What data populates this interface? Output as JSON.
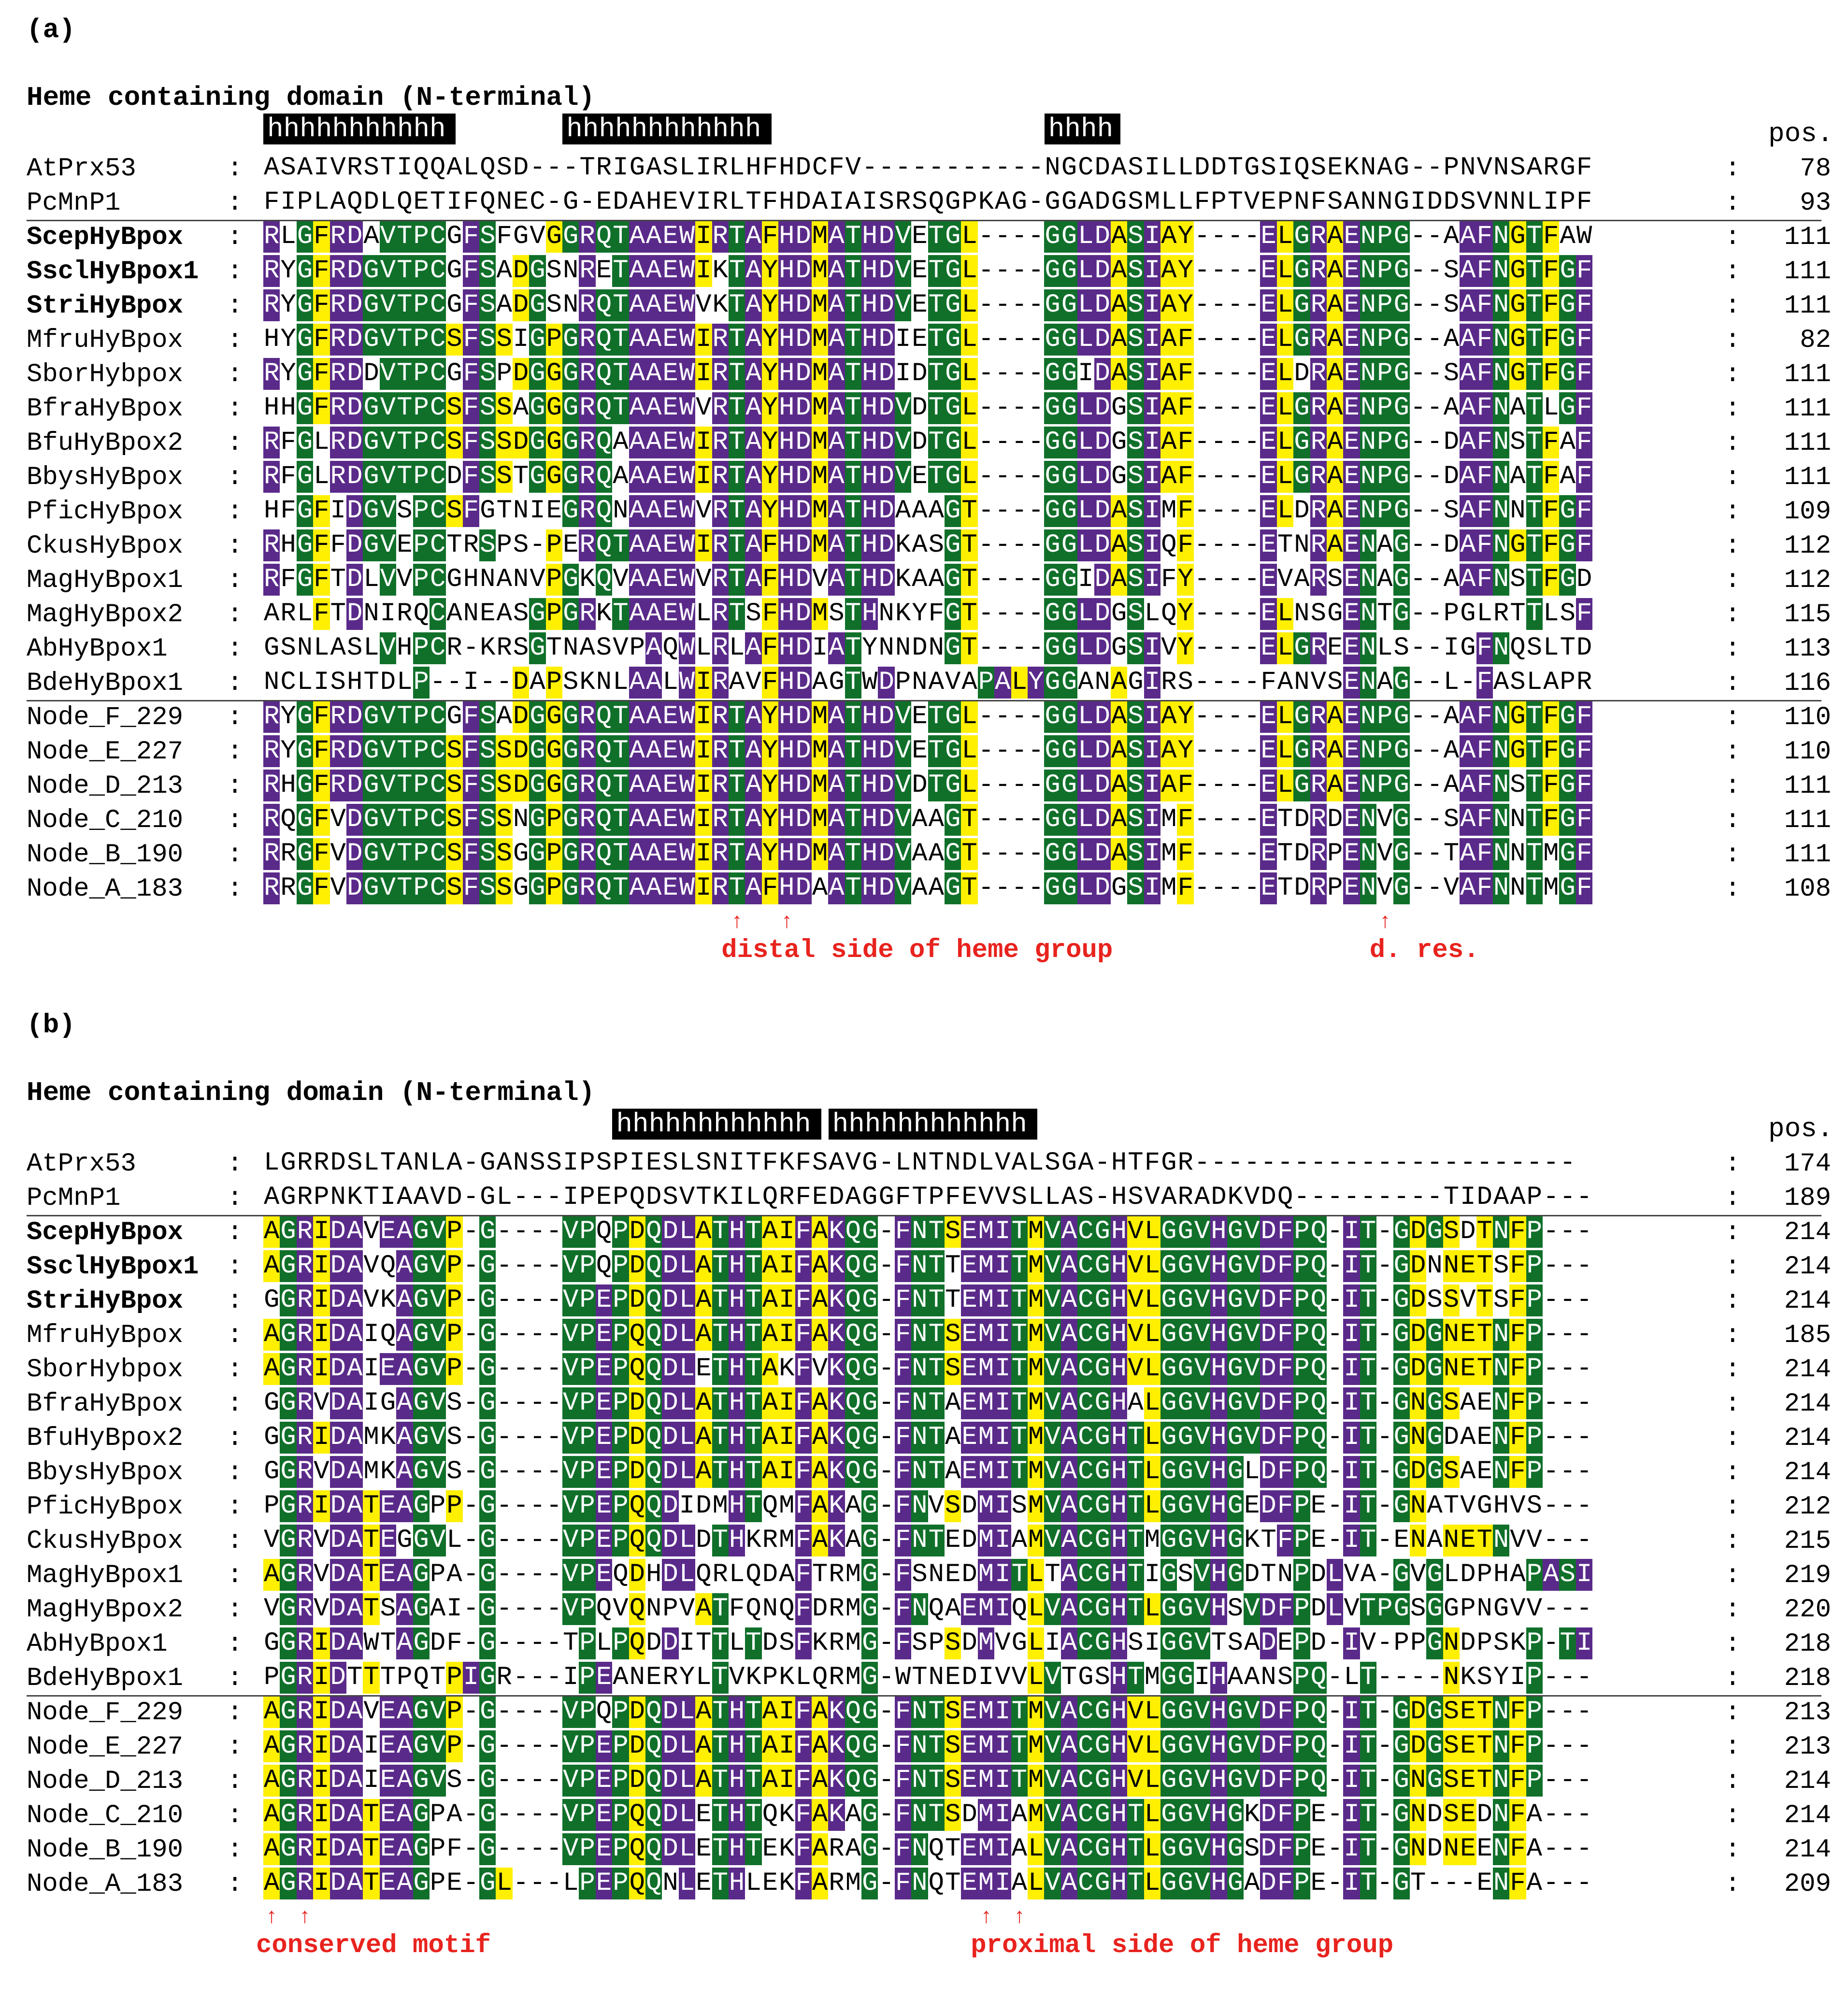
{
  "panels": [
    {
      "label": "(a)",
      "title": "Heme containing domain (N-terminal)",
      "pos_header": "pos.",
      "helices": [
        {
          "text": "hhhhhhhhhhh",
          "col": 0,
          "len": 11
        },
        {
          "text": "hhhhhhhhhhhh",
          "col": 18,
          "len": 12
        },
        {
          "text": "hhhh",
          "col": 47,
          "len": 4
        }
      ],
      "rows": [
        {
          "name": "AtPrx53",
          "bold": false,
          "seq": "ASAIVRSTIQQALQSD---TRIGASLIRLHFHDCFV-----------NGCDASILLDDTGSIQSEKNAG--PNVNSARGF",
          "pos": "78",
          "sep_after": false
        },
        {
          "name": "PcMnP1",
          "bold": false,
          "seq": "FIPLAQDLQETIFQNEC-G-EDAHEVIRLTFHDAIAISRSQGPKAG-GGADGSMLLFPTVEPNFSANNGIDDSVNNLIPF",
          "pos": "93",
          "sep_after": true
        },
        {
          "name": "ScepHyBpox",
          "bold": true,
          "seq": "RLGFRDAVTPCGFSFGVGGRQTAAEWIRTAFHDMATHDVETGL----GGLDASIAY----ELGRAENPG--AAFNGTFAW",
          "pos": "111",
          "sep_after": false
        },
        {
          "name": "SsclHyBpox1",
          "bold": true,
          "seq": "RYGFRDGVTPCGFSADGSNRETAAEWIKTAYHDMATHDVETGL----GGLDASIAY----ELGRAENPG--SAFNGTFGF",
          "pos": "111",
          "sep_after": false
        },
        {
          "name": "StriHyBpox",
          "bold": true,
          "seq": "RYGFRDGVTPCGFSADGSNRQTAAEWVKTAYHDMATHDVETGL----GGLDASIAY----ELGRAENPG--SAFNGTFGF",
          "pos": "111",
          "sep_after": false
        },
        {
          "name": "MfruHyBpox",
          "bold": false,
          "seq": "HYGFRDGVTPCSFSSIGPGRQTAAEWIRTAYHDMATHDIETGL----GGLDASIAF----ELGRAENPG--AAFNGTFGF",
          "pos": "82",
          "sep_after": false
        },
        {
          "name": "SborHybpox",
          "bold": false,
          "seq": "RYGFRDDVTPCGFSPDGGGRQTAAEWIRTAYHDMATHDIDTGL----GGIDASIAF----ELDRAENPG--SAFNGTFGF",
          "pos": "111",
          "sep_after": false
        },
        {
          "name": "BfraHyBpox",
          "bold": false,
          "seq": "HHGFRDGVTPCSFSSAGGGRQTAAEWVRTAYHDMATHDVDTGL----GGLDGSIAF----ELGRAENPG--AAFNATLGF",
          "pos": "111",
          "sep_after": false
        },
        {
          "name": "BfuHyBpox2",
          "bold": false,
          "seq": "RFGLRDGVTPCSFSSDGGGRQAAAEWIRTAYHDMATHDVDTGL----GGLDGSIAF----ELGRAENPG--DAFNSTFAF",
          "pos": "111",
          "sep_after": false
        },
        {
          "name": "BbysHyBpox",
          "bold": false,
          "seq": "RFGLRDGVTPCDFSSTGGGRQAAAEWIRTAYHDMATHDVETGL----GGLDGSIAF----ELGRAENPG--DAFNATFAF",
          "pos": "111",
          "sep_after": false
        },
        {
          "name": "PficHyBpox",
          "bold": false,
          "seq": "HFGFIDGVSPCSFGTNIEGRQNAAEWVRTAYHDMATHDAAAGT----GGLDASIMF----ELDRAENPG--SAFNNTFGF",
          "pos": "109",
          "sep_after": false
        },
        {
          "name": "CkusHyBpox",
          "bold": false,
          "seq": "RHGFFDGVEPCTRSPS-PERQTAAEWIRTAFHDMATHDKASGT----GGLDASIQF----ETNRAENAG--DAFNGTFGF",
          "pos": "112",
          "sep_after": false
        },
        {
          "name": "MagHyBpox1",
          "bold": false,
          "seq": "RFGFTDLVVPCGHNANVPGKQVAAEWVRTAFHDVATHDKAAGT----GGIDASIFY----EVARSENAG--AAFNSTFGD",
          "pos": "112",
          "sep_after": false
        },
        {
          "name": "MagHyBpox2",
          "bold": false,
          "seq": "ARLFTDNIRQCANEASGPGRKTAAEWLRTSFHDMSTHNKYFGT----GGLDGSLQY----ELNSGENTG--PGLRTTLSF",
          "pos": "115",
          "sep_after": false
        },
        {
          "name": "AbHyBpox1",
          "bold": false,
          "seq": "GSNLASLVHPCR-KRSGTNASVPAQWLRLAFHDIATYNNDNGT----GGLDGSIVY----ELGREENLS--IGFNQSLTD",
          "pos": "113",
          "sep_after": false
        },
        {
          "name": "BdeHyBpox1",
          "bold": false,
          "seq": "NCLISHTDLP--I--DAPSKNLAALWIRAVFHDAGTWDPNAVAPALYGGANAGIRS----FANVSENAG--L-FASLAPR",
          "pos": "116",
          "sep_after": true
        },
        {
          "name": "Node_F_229",
          "bold": false,
          "seq": "RYGFRDGVTPCGFSADGGGRQTAAEWIRTAYHDMATHDVETGL----GGLDASIAY----ELGRAENPG--AAFNGTFGF",
          "pos": "110",
          "sep_after": false
        },
        {
          "name": "Node_E_227",
          "bold": false,
          "seq": "RYGFRDGVTPCSFSSDGGGRQTAAEWIRTAYHDMATHDVETGL----GGLDASIAY----ELGRAENPG--AAFNGTFGF",
          "pos": "110",
          "sep_after": false
        },
        {
          "name": "Node_D_213",
          "bold": false,
          "seq": "RHGFRDGVTPCSFSSDGGGRQTAAEWIRTAYHDMATHDVDTGL----GGLDASIAF----ELGRAENPG--AAFNSTFGF",
          "pos": "111",
          "sep_after": false
        },
        {
          "name": "Node_C_210",
          "bold": false,
          "seq": "RQGFVDGVTPCSFSSNGPGRQTAAEWIRTAYHDMATHDVAAGT----GGLDASIMF----ETDRDENVG--SAFNNTFGF",
          "pos": "111",
          "sep_after": false
        },
        {
          "name": "Node_B_190",
          "bold": false,
          "seq": "RRGFVDGVTPCSFSSGGPGRQTAAEWIRTAYHDMATHDVAAGT----GGLDASIMF----ETDRPENVG--TAFNNTMGF",
          "pos": "111",
          "sep_after": false
        },
        {
          "name": "Node_A_183",
          "bold": false,
          "seq": "RRGFVDGVTPCSFSSGGPGRQTAAEWIRTAFHDAATHDVAAGT----GGLDGSIMF----ETDRPENVG--VAFNNTMGF",
          "pos": "108",
          "sep_after": false
        }
      ],
      "annotations": [
        {
          "text": "distal side of heme group",
          "arrow_cols": [
            28,
            31
          ]
        },
        {
          "text": "d. res.",
          "arrow_cols": [
            67
          ]
        }
      ]
    },
    {
      "label": "(b)",
      "title": "Heme containing domain (N-terminal)",
      "pos_header": "pos.",
      "helices": [
        {
          "text": "hhhhhhhhhhhh",
          "col": 21,
          "len": 12
        },
        {
          "text": "hhhhhhhhhhhh",
          "col": 34,
          "len": 12
        }
      ],
      "rows": [
        {
          "name": "AtPrx53",
          "bold": false,
          "seq": "LGRRDSLTANLA-GANSSIPSPIESLSNITFKFSAVG-LNTNDLVALSGA-HTFGR-----------------------",
          "pos": "174",
          "sep_after": false
        },
        {
          "name": "PcMnP1",
          "bold": false,
          "seq": "AGRPNKTIAAVD-GL---IPEPQDSVTKILQRFEDAGGFTPFEVVSLLAS-HSVARADKVDQ---------TIDAAP---",
          "pos": "189",
          "sep_after": true
        },
        {
          "name": "ScepHyBpox",
          "bold": true,
          "seq": "AGRIDAVEAGVP-G----VPQPDQDLATHTAIFAKQG-FNTSEMITMVACGHVLGGVHGVDFPQ-IT-GDGSDTNFP---",
          "pos": "214",
          "sep_after": false
        },
        {
          "name": "SsclHyBpox1",
          "bold": true,
          "seq": "AGRIDAVQAGVP-G----VPQPDQDLATHTAIFAKQG-FNTTEMITMVACGHVLGGVHGVDFPQ-IT-GDNNETSFP---",
          "pos": "214",
          "sep_after": false
        },
        {
          "name": "StriHyBpox",
          "bold": true,
          "seq": "GGRIDAVKAGVP-G----VPEPDQDLATHTAIFAKQG-FNTTEMITMVACGHVLGGVHGVDFPQ-IT-GDSSVTSFP---",
          "pos": "214",
          "sep_after": false
        },
        {
          "name": "MfruHyBpox",
          "bold": false,
          "seq": "AGRIDAIQAGVP-G----VPEPQQDLATHTAIFAKQG-FNTSEMITMVACGHVLGGVHGVDFPQ-IT-GDGNETNFP---",
          "pos": "185",
          "sep_after": false
        },
        {
          "name": "SborHybpox",
          "bold": false,
          "seq": "AGRIDAIEAGVP-G----VPEPQQDLETHTAKFVKQG-FNTSEMITMVACGHVLGGVHGVDFPQ-IT-GDGNETNFP---",
          "pos": "214",
          "sep_after": false
        },
        {
          "name": "BfraHyBpox",
          "bold": false,
          "seq": "GGRVDAIGAGVS-G----VPEPDQDLATHTAIFAKQG-FNTAEMITMVACGHALGGVHGVDFPQ-IT-GNGSAENFP---",
          "pos": "214",
          "sep_after": false
        },
        {
          "name": "BfuHyBpox2",
          "bold": false,
          "seq": "GGRIDAMKAGVS-G----VPEPDQDLATHTAIFAKQG-FNTAEMITMVACGHTLGGVHGVDFPQ-IT-GNGDAENFP---",
          "pos": "214",
          "sep_after": false
        },
        {
          "name": "BbysHyBpox",
          "bold": false,
          "seq": "GGRVDAMKAGVS-G----VPEPDQDLATHTAIFAKQG-FNTAEMITMVACGHTLGGVHGLDFPQ-IT-GDGSAENFP---",
          "pos": "214",
          "sep_after": false
        },
        {
          "name": "PficHyBpox",
          "bold": false,
          "seq": "PGRIDATEAGPP-G----VPEPQQDIDMHTQMFAKAG-FNVSDMISMVACGHTLGGVHGEDFPE-IT-GNATVGHVS---",
          "pos": "212",
          "sep_after": false
        },
        {
          "name": "CkusHyBpox",
          "bold": false,
          "seq": "VGRVDATEGGVL-G----VPEPQQDLDTHKRMFAKAG-FNTEDMIAMVACGHTMGGVHGKTFPE-IT-ENANETNVV---",
          "pos": "215",
          "sep_after": false
        },
        {
          "name": "MagHyBpox1",
          "bold": false,
          "seq": "AGRVDATEAGPA-G----VPEQDHDLQRLQDAFTRMG-FSNEDMITLTACGHTIGSVHGDTNPDLVA-GVGLDPHAPASI",
          "pos": "219",
          "sep_after": false
        },
        {
          "name": "MagHyBpox2",
          "bold": false,
          "seq": "VGRVDATSAGAI-G----VPQVQNPVATFQNQFDRMG-FNQAEMIQLVACGHTLGGVHSVDFPDLVTPGSGGPNGVV---",
          "pos": "220",
          "sep_after": false
        },
        {
          "name": "AbHyBpox1",
          "bold": false,
          "seq": "GGRIDAWTAGDF-G----TPLPQDDITTLTDSFKRMG-FSPSDMVGLIACGHSIGGVTSADEPD-IV-PPGNDPSKP-TI",
          "pos": "218",
          "sep_after": false
        },
        {
          "name": "BdeHyBpox1",
          "bold": false,
          "seq": "PGRIDTTTPQTPIGR---IPEANERYLTVKPKLQRMG-WTNEDIVVLVTGSHTMGGIHAANSPQ-LT----NKSYIP---",
          "pos": "218",
          "sep_after": true
        },
        {
          "name": "Node_F_229",
          "bold": false,
          "seq": "AGRIDAVEAGVP-G----VPQPDQDLATHTAIFAKQG-FNTSEMITMVACGHVLGGVHGVDFPQ-IT-GDGSETNFP---",
          "pos": "213",
          "sep_after": false
        },
        {
          "name": "Node_E_227",
          "bold": false,
          "seq": "AGRIDAIEAGVP-G----VPEPDQDLATHTAIFAKQG-FNTSEMITMVACGHVLGGVHGVDFPQ-IT-GDGSETNFP---",
          "pos": "213",
          "sep_after": false
        },
        {
          "name": "Node_D_213",
          "bold": false,
          "seq": "AGRIDAIEAGVS-G----VPEPDQDLATHTAIFAKQG-FNTSEMITMVACGHVLGGVHGVDFPQ-IT-GNGSETNFP---",
          "pos": "214",
          "sep_after": false
        },
        {
          "name": "Node_C_210",
          "bold": false,
          "seq": "AGRIDATEAGPA-G----VPEPQQDLETHTQKFAKAG-FNTSDMIAMVACGHTLGGVHGKDFPE-IT-GNDSEDNFA---",
          "pos": "214",
          "sep_after": false
        },
        {
          "name": "Node_B_190",
          "bold": false,
          "seq": "AGRIDATEAGPF-G----VPEPQQDLETHTEKFARAG-FNQTEMIALVACGHTLGGVHGSDFPE-IT-GNDNEENFA---",
          "pos": "214",
          "sep_after": false
        },
        {
          "name": "Node_A_183",
          "bold": false,
          "seq": "AGRIDATEAGPE-GL---LPEPQQNLETHLEKFARMG-FNQTEMIALVACGHTLGGVHGADFPE-IT-GT---ENFA---",
          "pos": "209",
          "sep_after": false
        }
      ],
      "annotations": [
        {
          "text": "conserved motif",
          "arrow_cols": [
            0,
            2
          ]
        },
        {
          "text": "proximal side of heme group",
          "arrow_cols": [
            43,
            45
          ]
        }
      ]
    }
  ],
  "colors": {
    "yellow": "#ffef00",
    "purple": "#5a2a8a",
    "green": "#10702a",
    "annotation_red": "#e8231e"
  }
}
